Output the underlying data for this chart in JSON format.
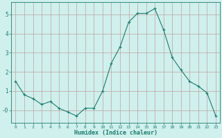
{
  "x": [
    0,
    1,
    2,
    3,
    4,
    5,
    6,
    7,
    8,
    9,
    10,
    11,
    12,
    13,
    14,
    15,
    16,
    17,
    18,
    19,
    20,
    21,
    22,
    23
  ],
  "y": [
    1.5,
    0.8,
    0.6,
    0.3,
    0.45,
    0.1,
    -0.1,
    -0.3,
    0.1,
    0.1,
    1.0,
    2.45,
    3.3,
    4.6,
    5.05,
    5.05,
    5.3,
    4.2,
    2.75,
    2.1,
    1.5,
    1.25,
    0.9,
    -0.3
  ],
  "line_color": "#1a7a6e",
  "marker": "+",
  "marker_size": 3,
  "bg_color": "#cff0ec",
  "grid_color": "#c0a0a0",
  "axis_color": "#1a7a6e",
  "xlabel": "Humidex (Indice chaleur)",
  "xlim": [
    -0.5,
    23.5
  ],
  "ylim": [
    -0.65,
    5.65
  ],
  "ytick_labels": [
    "-0",
    "1",
    "2",
    "3",
    "4",
    "5"
  ],
  "ytick_vals": [
    0,
    1,
    2,
    3,
    4,
    5
  ],
  "xtick_labels": [
    "0",
    "1",
    "2",
    "3",
    "4",
    "5",
    "6",
    "7",
    "8",
    "9",
    "10",
    "11",
    "12",
    "13",
    "14",
    "15",
    "16",
    "17",
    "18",
    "19",
    "20",
    "21",
    "22",
    "23"
  ]
}
